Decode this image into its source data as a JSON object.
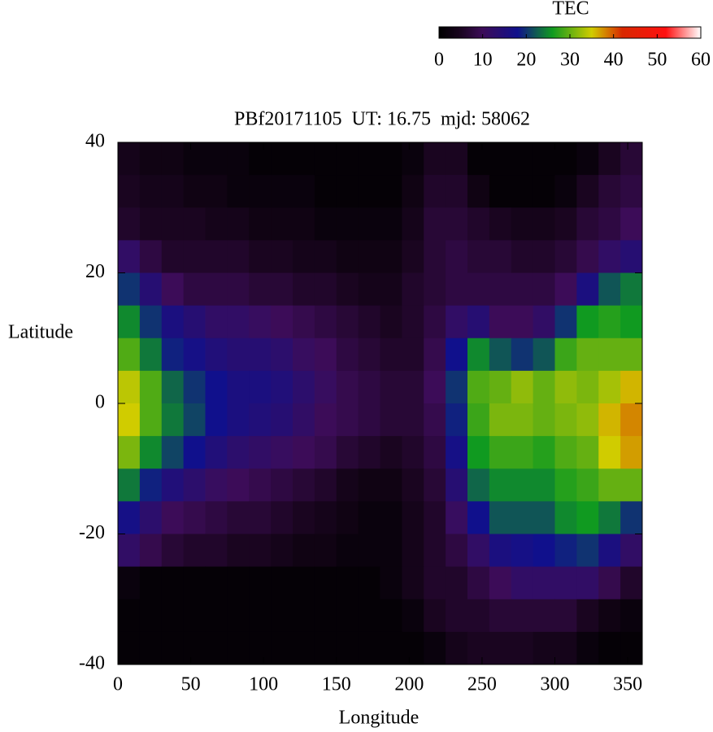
{
  "chart_data": {
    "type": "heatmap",
    "title": "PBf20171105  UT: 16.75  mjd: 58062",
    "xlabel": "Longitude",
    "ylabel": "Latitude",
    "xlim": [
      0,
      360
    ],
    "xticks": [
      0,
      50,
      100,
      150,
      200,
      250,
      300,
      350
    ],
    "ylim": [
      -40,
      40
    ],
    "yticks": [
      -40,
      -20,
      0,
      20,
      40
    ],
    "x": [
      7.5,
      22.5,
      37.5,
      52.5,
      67.5,
      82.5,
      97.5,
      112.5,
      127.5,
      142.5,
      157.5,
      172.5,
      187.5,
      202.5,
      217.5,
      232.5,
      247.5,
      262.5,
      277.5,
      292.5,
      307.5,
      322.5,
      337.5,
      352.5
    ],
    "y": [
      37.5,
      32.5,
      27.5,
      22.5,
      17.5,
      12.5,
      7.5,
      2.5,
      -2.5,
      -7.5,
      -12.5,
      -17.5,
      -22.5,
      -27.5,
      -32.5,
      -37.5
    ],
    "values": [
      [
        4,
        3,
        3,
        2,
        2,
        2,
        1,
        1,
        1,
        1,
        1,
        1,
        1,
        2,
        5,
        5,
        1,
        1,
        1,
        1,
        1,
        2,
        5,
        7
      ],
      [
        5,
        4,
        4,
        3,
        3,
        2,
        2,
        2,
        2,
        1,
        1,
        1,
        1,
        3,
        6,
        6,
        3,
        1,
        1,
        1,
        2,
        5,
        7,
        8
      ],
      [
        6,
        5,
        5,
        5,
        4,
        4,
        3,
        3,
        3,
        2,
        2,
        2,
        2,
        4,
        7,
        7,
        6,
        5,
        4,
        4,
        5,
        7,
        8,
        10
      ],
      [
        12,
        8,
        6,
        6,
        6,
        6,
        5,
        5,
        4,
        4,
        3,
        3,
        3,
        5,
        7,
        8,
        7,
        7,
        6,
        6,
        7,
        9,
        12,
        14
      ],
      [
        20,
        14,
        10,
        8,
        8,
        8,
        7,
        7,
        6,
        6,
        5,
        4,
        4,
        6,
        7,
        8,
        8,
        8,
        8,
        8,
        10,
        16,
        22,
        24
      ],
      [
        25,
        20,
        16,
        14,
        12,
        12,
        11,
        10,
        9,
        8,
        7,
        6,
        5,
        6,
        8,
        12,
        14,
        10,
        10,
        12,
        20,
        26,
        27,
        26
      ],
      [
        29,
        24,
        19,
        17,
        15,
        14,
        14,
        13,
        11,
        10,
        8,
        7,
        6,
        6,
        9,
        18,
        25,
        22,
        20,
        22,
        28,
        30,
        30,
        30
      ],
      [
        34,
        29,
        23,
        20,
        18,
        16,
        16,
        15,
        13,
        11,
        9,
        8,
        7,
        7,
        10,
        20,
        29,
        30,
        32,
        30,
        32,
        31,
        33,
        36
      ],
      [
        35,
        29,
        24,
        21,
        18,
        16,
        15,
        14,
        12,
        10,
        9,
        8,
        7,
        7,
        9,
        19,
        28,
        31,
        31,
        30,
        31,
        32,
        36,
        38
      ],
      [
        31,
        25,
        21,
        18,
        15,
        13,
        12,
        11,
        10,
        9,
        7,
        6,
        5,
        6,
        8,
        17,
        26,
        28,
        28,
        27,
        29,
        30,
        35,
        37
      ],
      [
        24,
        19,
        15,
        13,
        11,
        10,
        9,
        8,
        7,
        6,
        4,
        3,
        3,
        5,
        7,
        14,
        23,
        25,
        25,
        25,
        27,
        28,
        30,
        30
      ],
      [
        17,
        13,
        10,
        9,
        8,
        7,
        7,
        6,
        5,
        4,
        3,
        2,
        2,
        4,
        6,
        11,
        18,
        22,
        22,
        22,
        25,
        26,
        24,
        20
      ],
      [
        12,
        9,
        7,
        6,
        6,
        5,
        5,
        4,
        3,
        3,
        2,
        2,
        2,
        4,
        6,
        8,
        12,
        16,
        17,
        18,
        19,
        20,
        16,
        12
      ],
      [
        2,
        1,
        1,
        1,
        1,
        1,
        1,
        1,
        1,
        1,
        1,
        1,
        2,
        4,
        6,
        6,
        8,
        10,
        12,
        12,
        12,
        12,
        9,
        6
      ],
      [
        1,
        1,
        1,
        1,
        1,
        1,
        1,
        1,
        1,
        1,
        1,
        1,
        1,
        2,
        5,
        6,
        6,
        7,
        7,
        7,
        7,
        5,
        3,
        2
      ],
      [
        1,
        1,
        1,
        1,
        1,
        1,
        1,
        1,
        1,
        1,
        1,
        1,
        1,
        1,
        2,
        4,
        5,
        5,
        5,
        4,
        4,
        2,
        1,
        1
      ]
    ],
    "colorbar": {
      "label": "TEC",
      "lim": [
        0,
        60
      ],
      "ticks": [
        0,
        10,
        20,
        30,
        40,
        50,
        60
      ]
    },
    "colorscale": [
      {
        "value": 0,
        "color": "#000000"
      },
      {
        "value": 5,
        "color": "#1a0520"
      },
      {
        "value": 10,
        "color": "#3c0c58"
      },
      {
        "value": 18,
        "color": "#10108c"
      },
      {
        "value": 26,
        "color": "#109a20"
      },
      {
        "value": 35,
        "color": "#d0cc00"
      },
      {
        "value": 42,
        "color": "#d82800"
      },
      {
        "value": 52,
        "color": "#ff1010"
      },
      {
        "value": 60,
        "color": "#ffffff"
      }
    ]
  }
}
